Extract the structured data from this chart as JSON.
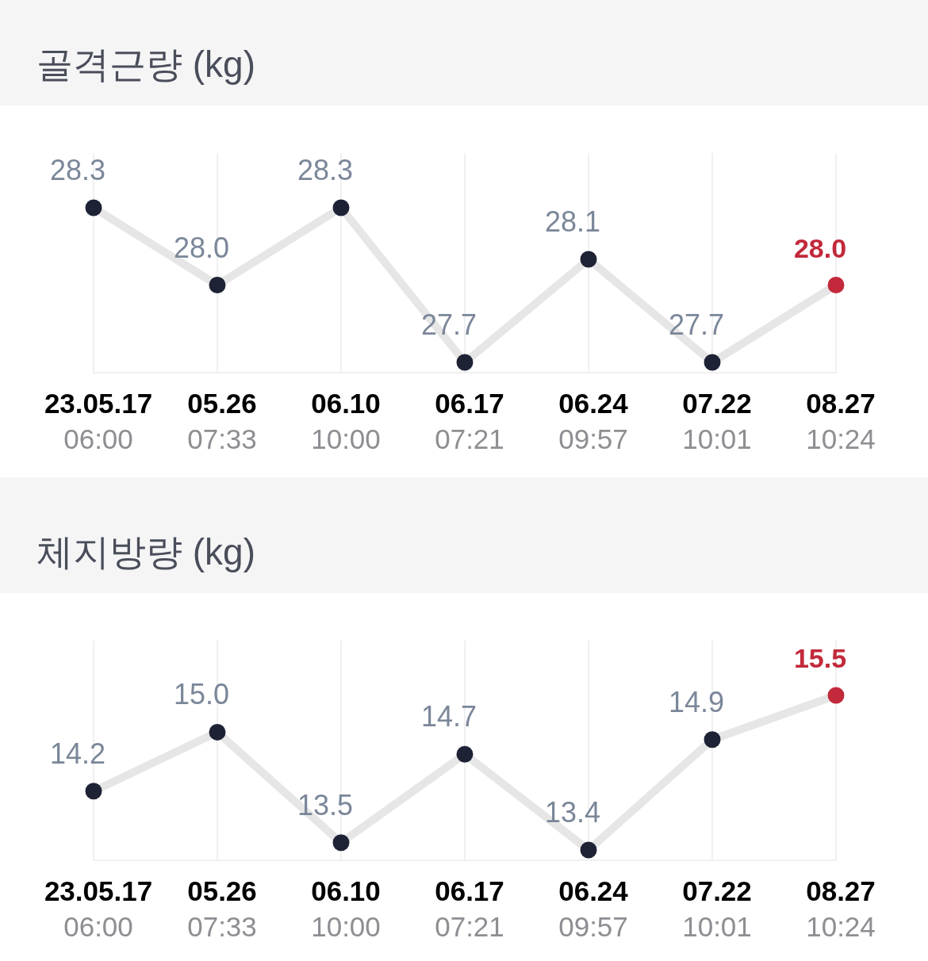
{
  "chart_data": [
    {
      "type": "line",
      "title": "골격근량 (kg)",
      "categories": [
        "23.05.17\n06:00",
        "05.26\n07:33",
        "06.10\n10:00",
        "06.17\n07:21",
        "06.24\n09:57",
        "07.22\n10:01",
        "08.27\n10:24"
      ],
      "values": [
        28.3,
        28.0,
        28.3,
        27.7,
        28.1,
        27.7,
        28.0
      ],
      "value_labels": [
        "28.3",
        "28.0",
        "28.3",
        "27.7",
        "28.1",
        "27.7",
        "28.0"
      ],
      "color": "#e6e6e6",
      "colors": [
        "#1e2235",
        "#1e2235",
        "#1e2235",
        "#1e2235",
        "#1e2235",
        "#1e2235",
        "#c22a3b"
      ],
      "marker": "circle",
      "line_style": "solid",
      "grid": "x"
    },
    {
      "type": "line",
      "title": "체지방량 (kg)",
      "categories": [
        "23.05.17\n06:00",
        "05.26\n07:33",
        "06.10\n10:00",
        "06.17\n07:21",
        "06.24\n09:57",
        "07.22\n10:01",
        "08.27\n10:24"
      ],
      "values": [
        14.2,
        15.0,
        13.5,
        14.7,
        13.4,
        14.9,
        15.5
      ],
      "value_labels": [
        "14.2",
        "15.0",
        "13.5",
        "14.7",
        "13.4",
        "14.9",
        "15.5"
      ],
      "color": "#e6e6e6",
      "colors": [
        "#1e2235",
        "#1e2235",
        "#1e2235",
        "#1e2235",
        "#1e2235",
        "#1e2235",
        "#c22a3b"
      ],
      "marker": "circle",
      "line_style": "solid",
      "grid": "x"
    }
  ]
}
